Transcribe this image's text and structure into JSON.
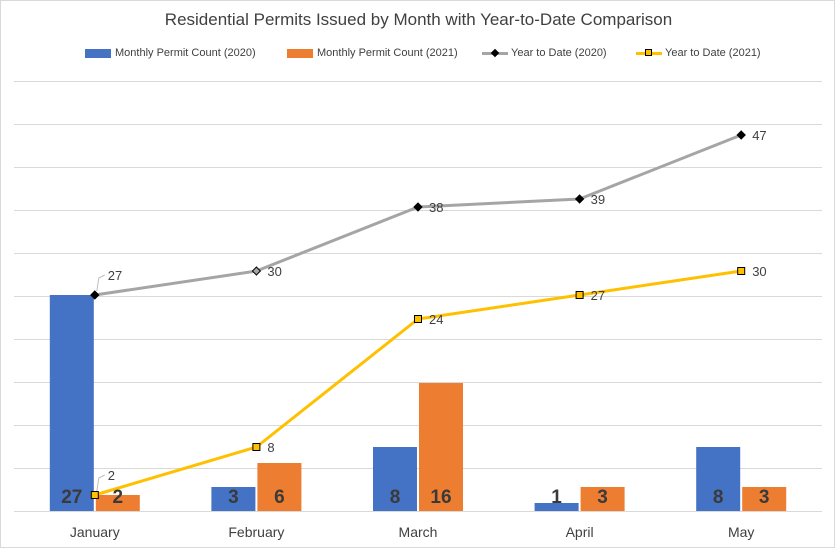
{
  "chart_data": {
    "type": "bar",
    "title": "Residential Permits Issued by Month with Year-to-Date Comparison",
    "categories": [
      "January",
      "February",
      "March",
      "April",
      "May"
    ],
    "series": [
      {
        "name": "Monthly Permit Count (2020)",
        "kind": "bar",
        "color": "#4472c4",
        "values": [
          27,
          3,
          8,
          1,
          8
        ]
      },
      {
        "name": "Monthly Permit Count (2021)",
        "kind": "bar",
        "color": "#ed7d31",
        "values": [
          2,
          6,
          16,
          3,
          3
        ]
      },
      {
        "name": "Year to Date (2020)",
        "kind": "line",
        "color": "#a5a5a5",
        "marker": "diamond",
        "values": [
          27,
          30,
          38,
          39,
          47
        ]
      },
      {
        "name": "Year to Date (2021)",
        "kind": "line",
        "color": "#ffc000",
        "marker": "square",
        "values": [
          2,
          8,
          24,
          27,
          30
        ]
      }
    ],
    "bar_ylim": [
      0,
      54
    ],
    "line_ylim": [
      0,
      54
    ],
    "grid": true,
    "legend_position": "top"
  },
  "legend": {
    "bar_2020": "Monthly Permit Count (2020)",
    "bar_2021": "Monthly Permit Count (2021)",
    "line_2020": "Year to Date (2020)",
    "line_2021": "Year to Date (2021)"
  }
}
